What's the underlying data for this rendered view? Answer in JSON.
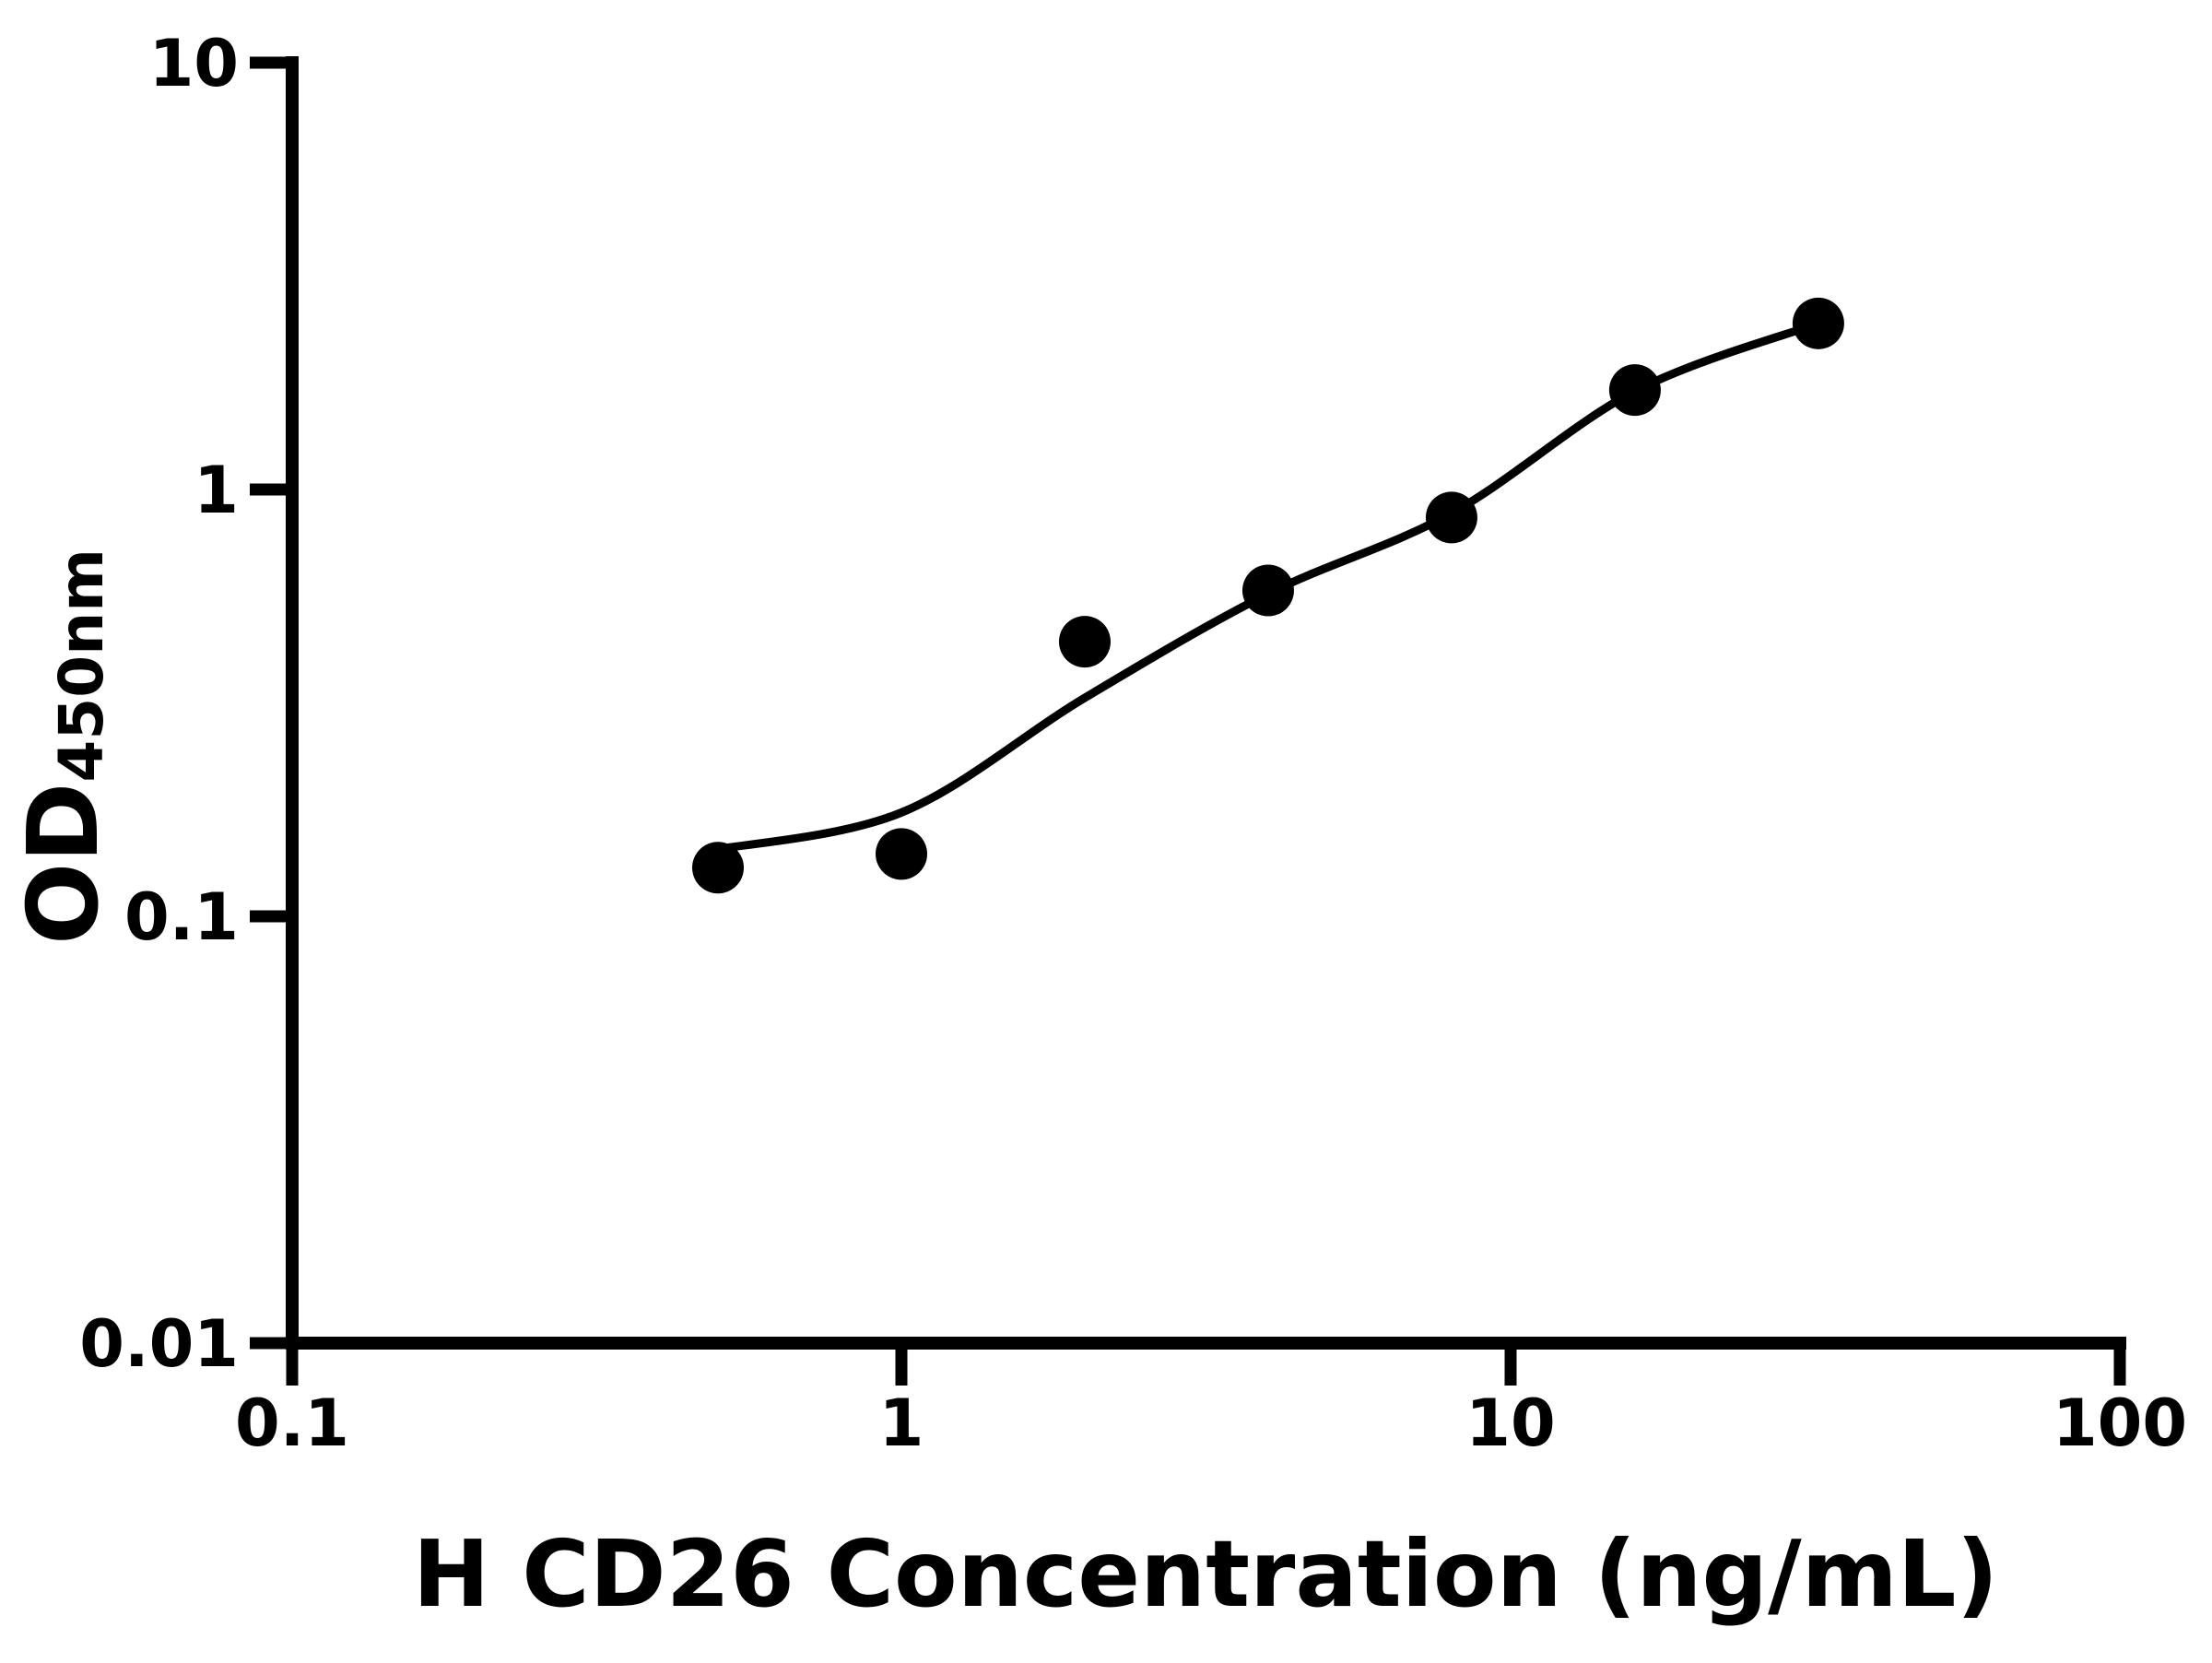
{
  "chart_data": {
    "type": "scatter",
    "title": "",
    "xlabel": "H CD26 Concentration (ng/mL)",
    "ylabel_main": "OD",
    "ylabel_sub": "450nm",
    "xscale": "log",
    "yscale": "log",
    "xlim": [
      0.1,
      100
    ],
    "ylim": [
      0.01,
      10
    ],
    "grid": false,
    "legend": "none",
    "background_color": "#ffffff",
    "axis_color": "#000000",
    "x_ticks": [
      {
        "value": 0.1,
        "label": "0.1"
      },
      {
        "value": 1,
        "label": "1"
      },
      {
        "value": 10,
        "label": "10"
      },
      {
        "value": 100,
        "label": "100"
      }
    ],
    "y_ticks": [
      {
        "value": 0.01,
        "label": "0.01"
      },
      {
        "value": 0.1,
        "label": "0.1"
      },
      {
        "value": 1,
        "label": "1"
      },
      {
        "value": 10,
        "label": "10"
      }
    ],
    "series": [
      {
        "name": "standard-data-points",
        "plot_as": "points",
        "marker": "circle",
        "color": "#000000",
        "x": [
          0.5,
          1,
          2,
          4,
          8,
          16,
          32
        ],
        "y": [
          0.13,
          0.14,
          0.44,
          0.58,
          0.86,
          1.71,
          2.45
        ]
      },
      {
        "name": "fitted-curve",
        "plot_as": "line",
        "color": "#000000",
        "x": [
          0.49,
          1,
          2,
          4,
          8,
          16,
          32
        ],
        "y": [
          0.143,
          0.175,
          0.325,
          0.57,
          0.88,
          1.7,
          2.45
        ]
      }
    ]
  }
}
